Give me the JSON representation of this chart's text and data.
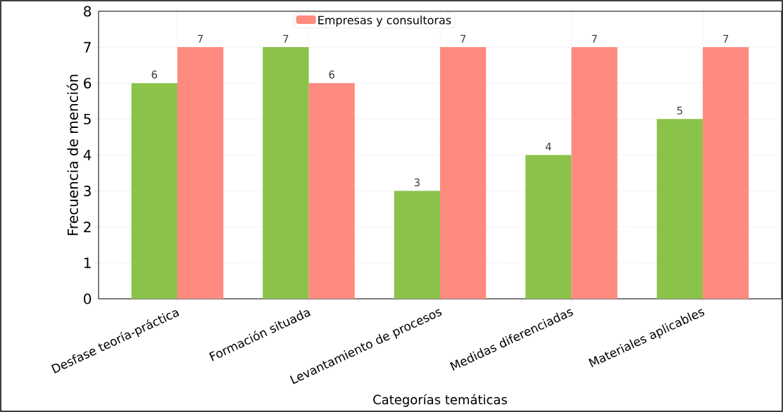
{
  "chart_data": {
    "type": "bar",
    "xlabel": "Categorías temáticas",
    "ylabel": "Frecuencia de mención",
    "categories": [
      "Desfase teoría-práctica",
      "Formación situada",
      "Levantamiento de procesos",
      "Medidas diferenciadas",
      "Materiales aplicables"
    ],
    "series": [
      {
        "color": "#8bc34a",
        "values": [
          6,
          7,
          3,
          4,
          5
        ]
      },
      {
        "name": "Empresas y consultoras",
        "color": "#ff8a80",
        "values": [
          7,
          6,
          7,
          7,
          7
        ]
      }
    ],
    "ylim": [
      0,
      8
    ],
    "yticks": [
      0,
      1,
      2,
      3,
      4,
      5,
      6,
      7,
      8
    ],
    "grid": true,
    "legend": "top",
    "data_labels": true
  }
}
